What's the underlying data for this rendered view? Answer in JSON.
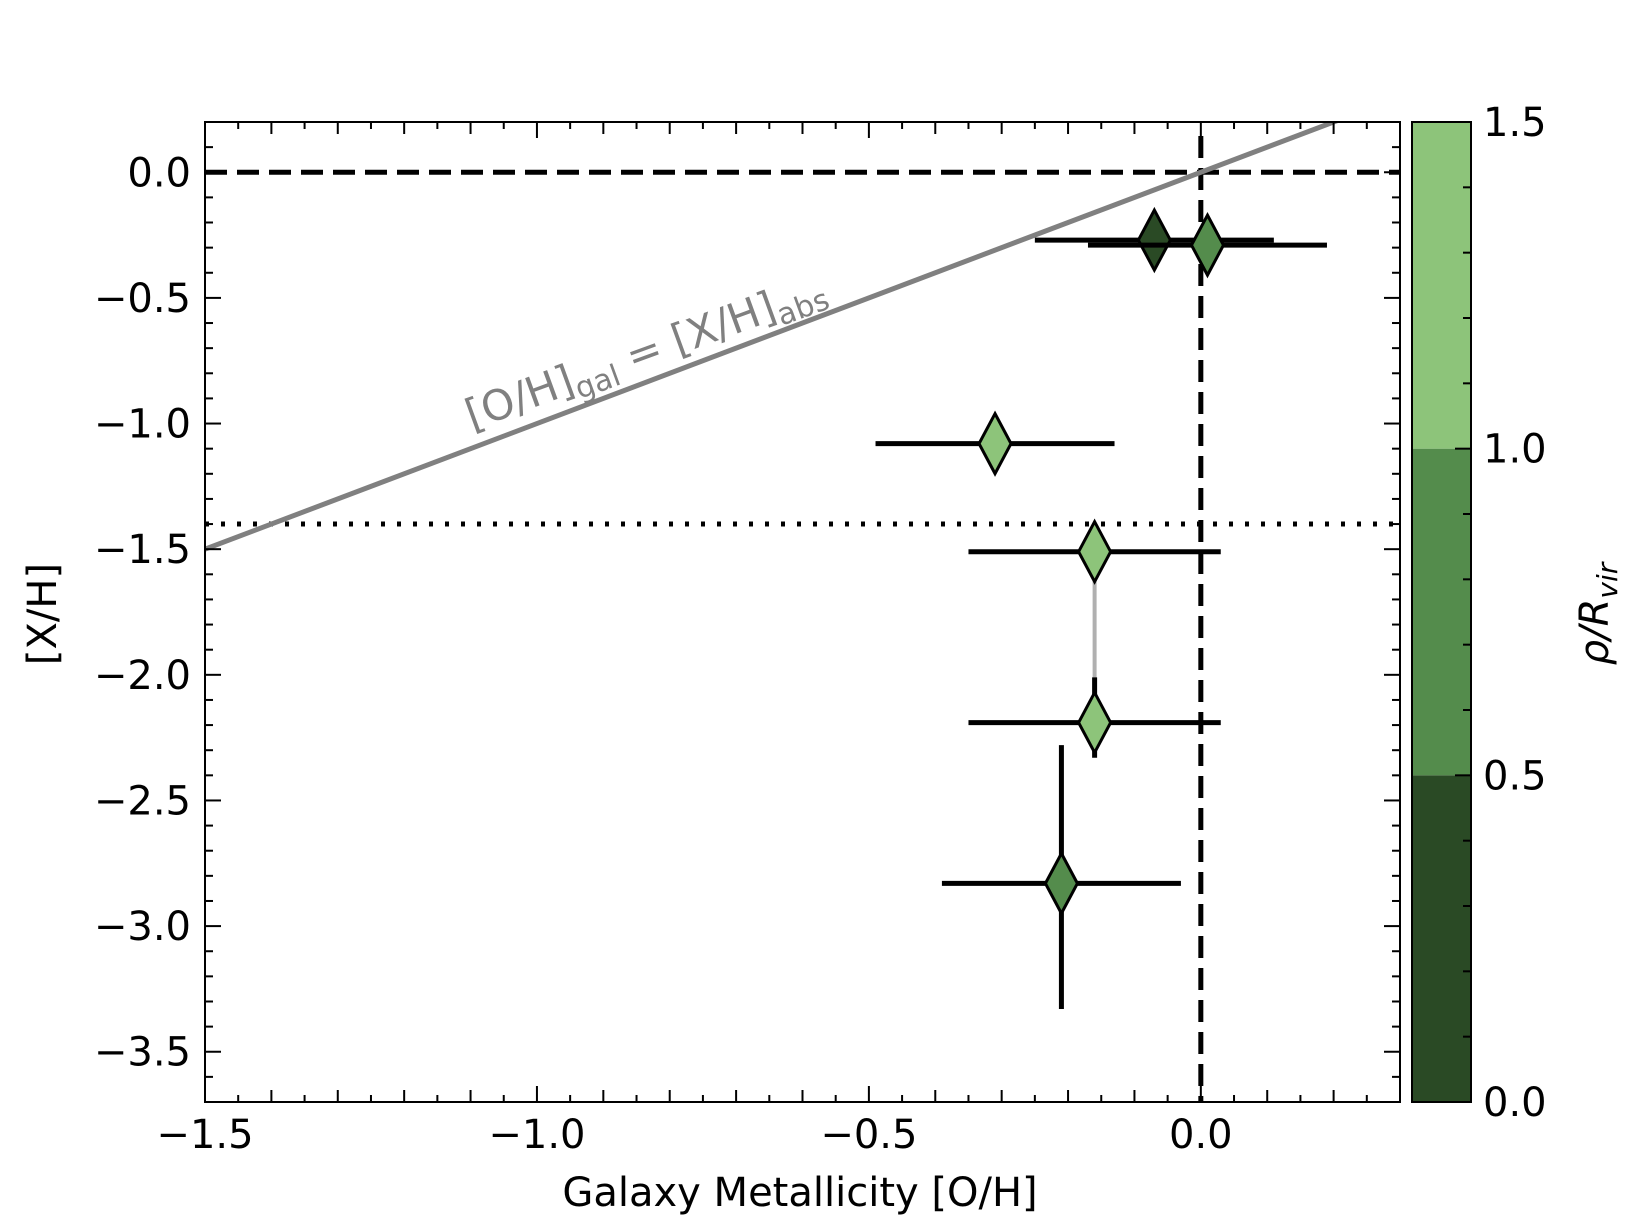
{
  "chart_data": {
    "type": "scatter",
    "xlabel": "Galaxy Metallicity [O/H]",
    "ylabel": "[X/H]",
    "xlim": [
      -1.5,
      0.3
    ],
    "ylim": [
      -3.7,
      0.2
    ],
    "x_ticks": [
      -1.5,
      -1.0,
      -0.5,
      0.0
    ],
    "x_tick_labels": [
      "−1.5",
      "−1.0",
      "−0.5",
      "0.0"
    ],
    "y_ticks": [
      0.0,
      -0.5,
      -1.0,
      -1.5,
      -2.0,
      -2.5,
      -3.0,
      -3.5
    ],
    "y_tick_labels": [
      "0.0",
      "−0.5",
      "−1.0",
      "−1.5",
      "−2.0",
      "−2.5",
      "−3.0",
      "−3.5"
    ],
    "grid": false,
    "colorbar": {
      "label_main": "ρ/R",
      "label_sub": "vir",
      "range": [
        0.0,
        1.5
      ],
      "ticks": [
        0.0,
        0.5,
        1.0,
        1.5
      ],
      "tick_labels": [
        "0.0",
        "0.5",
        "1.0",
        "1.5"
      ],
      "bins": [
        {
          "from": 0.0,
          "to": 0.5,
          "color": "#2a4a25"
        },
        {
          "from": 0.5,
          "to": 1.0,
          "color": "#548c4c"
        },
        {
          "from": 1.0,
          "to": 1.5,
          "color": "#8dc47a"
        }
      ]
    },
    "points": [
      {
        "x": -0.07,
        "y": -0.27,
        "xerr": [
          0.18,
          0.18
        ],
        "yerr": [
          0.0,
          0.0
        ],
        "rho": 0.25,
        "color": "#2a4a25"
      },
      {
        "x": 0.01,
        "y": -0.29,
        "xerr": [
          0.18,
          0.18
        ],
        "yerr": [
          0.0,
          0.0
        ],
        "rho": 0.75,
        "color": "#548c4c"
      },
      {
        "x": -0.31,
        "y": -1.08,
        "xerr": [
          0.18,
          0.18
        ],
        "yerr": [
          0.0,
          0.0
        ],
        "rho": 1.25,
        "color": "#8dc47a"
      },
      {
        "x": -0.16,
        "y": -1.51,
        "xerr": [
          0.19,
          0.19
        ],
        "yerr": [
          0.0,
          0.0
        ],
        "rho": 1.25,
        "color": "#8dc47a"
      },
      {
        "x": -0.16,
        "y": -2.19,
        "xerr": [
          0.19,
          0.19
        ],
        "yerr": [
          0.14,
          0.18
        ],
        "rho": 1.25,
        "color": "#8dc47a"
      },
      {
        "x": -0.21,
        "y": -2.83,
        "xerr": [
          0.18,
          0.18
        ],
        "yerr": [
          0.5,
          0.55
        ],
        "rho": 0.75,
        "color": "#548c4c"
      }
    ],
    "connectors": [
      {
        "x": -0.16,
        "y1": -1.51,
        "y2": -2.19,
        "color": "#b0b0b0"
      }
    ],
    "reference_lines": [
      {
        "kind": "horizontal",
        "value": 0.0,
        "style": "dashed"
      },
      {
        "kind": "horizontal",
        "value": -1.4,
        "style": "dotted"
      },
      {
        "kind": "vertical",
        "value": 0.0,
        "style": "dashed"
      },
      {
        "kind": "one-to-one",
        "style": "solid",
        "color": "#808080"
      }
    ],
    "annotation": {
      "t1": "[O/H]",
      "s1": "gal",
      "t2": " = [X/H]",
      "s2": "abs"
    }
  }
}
